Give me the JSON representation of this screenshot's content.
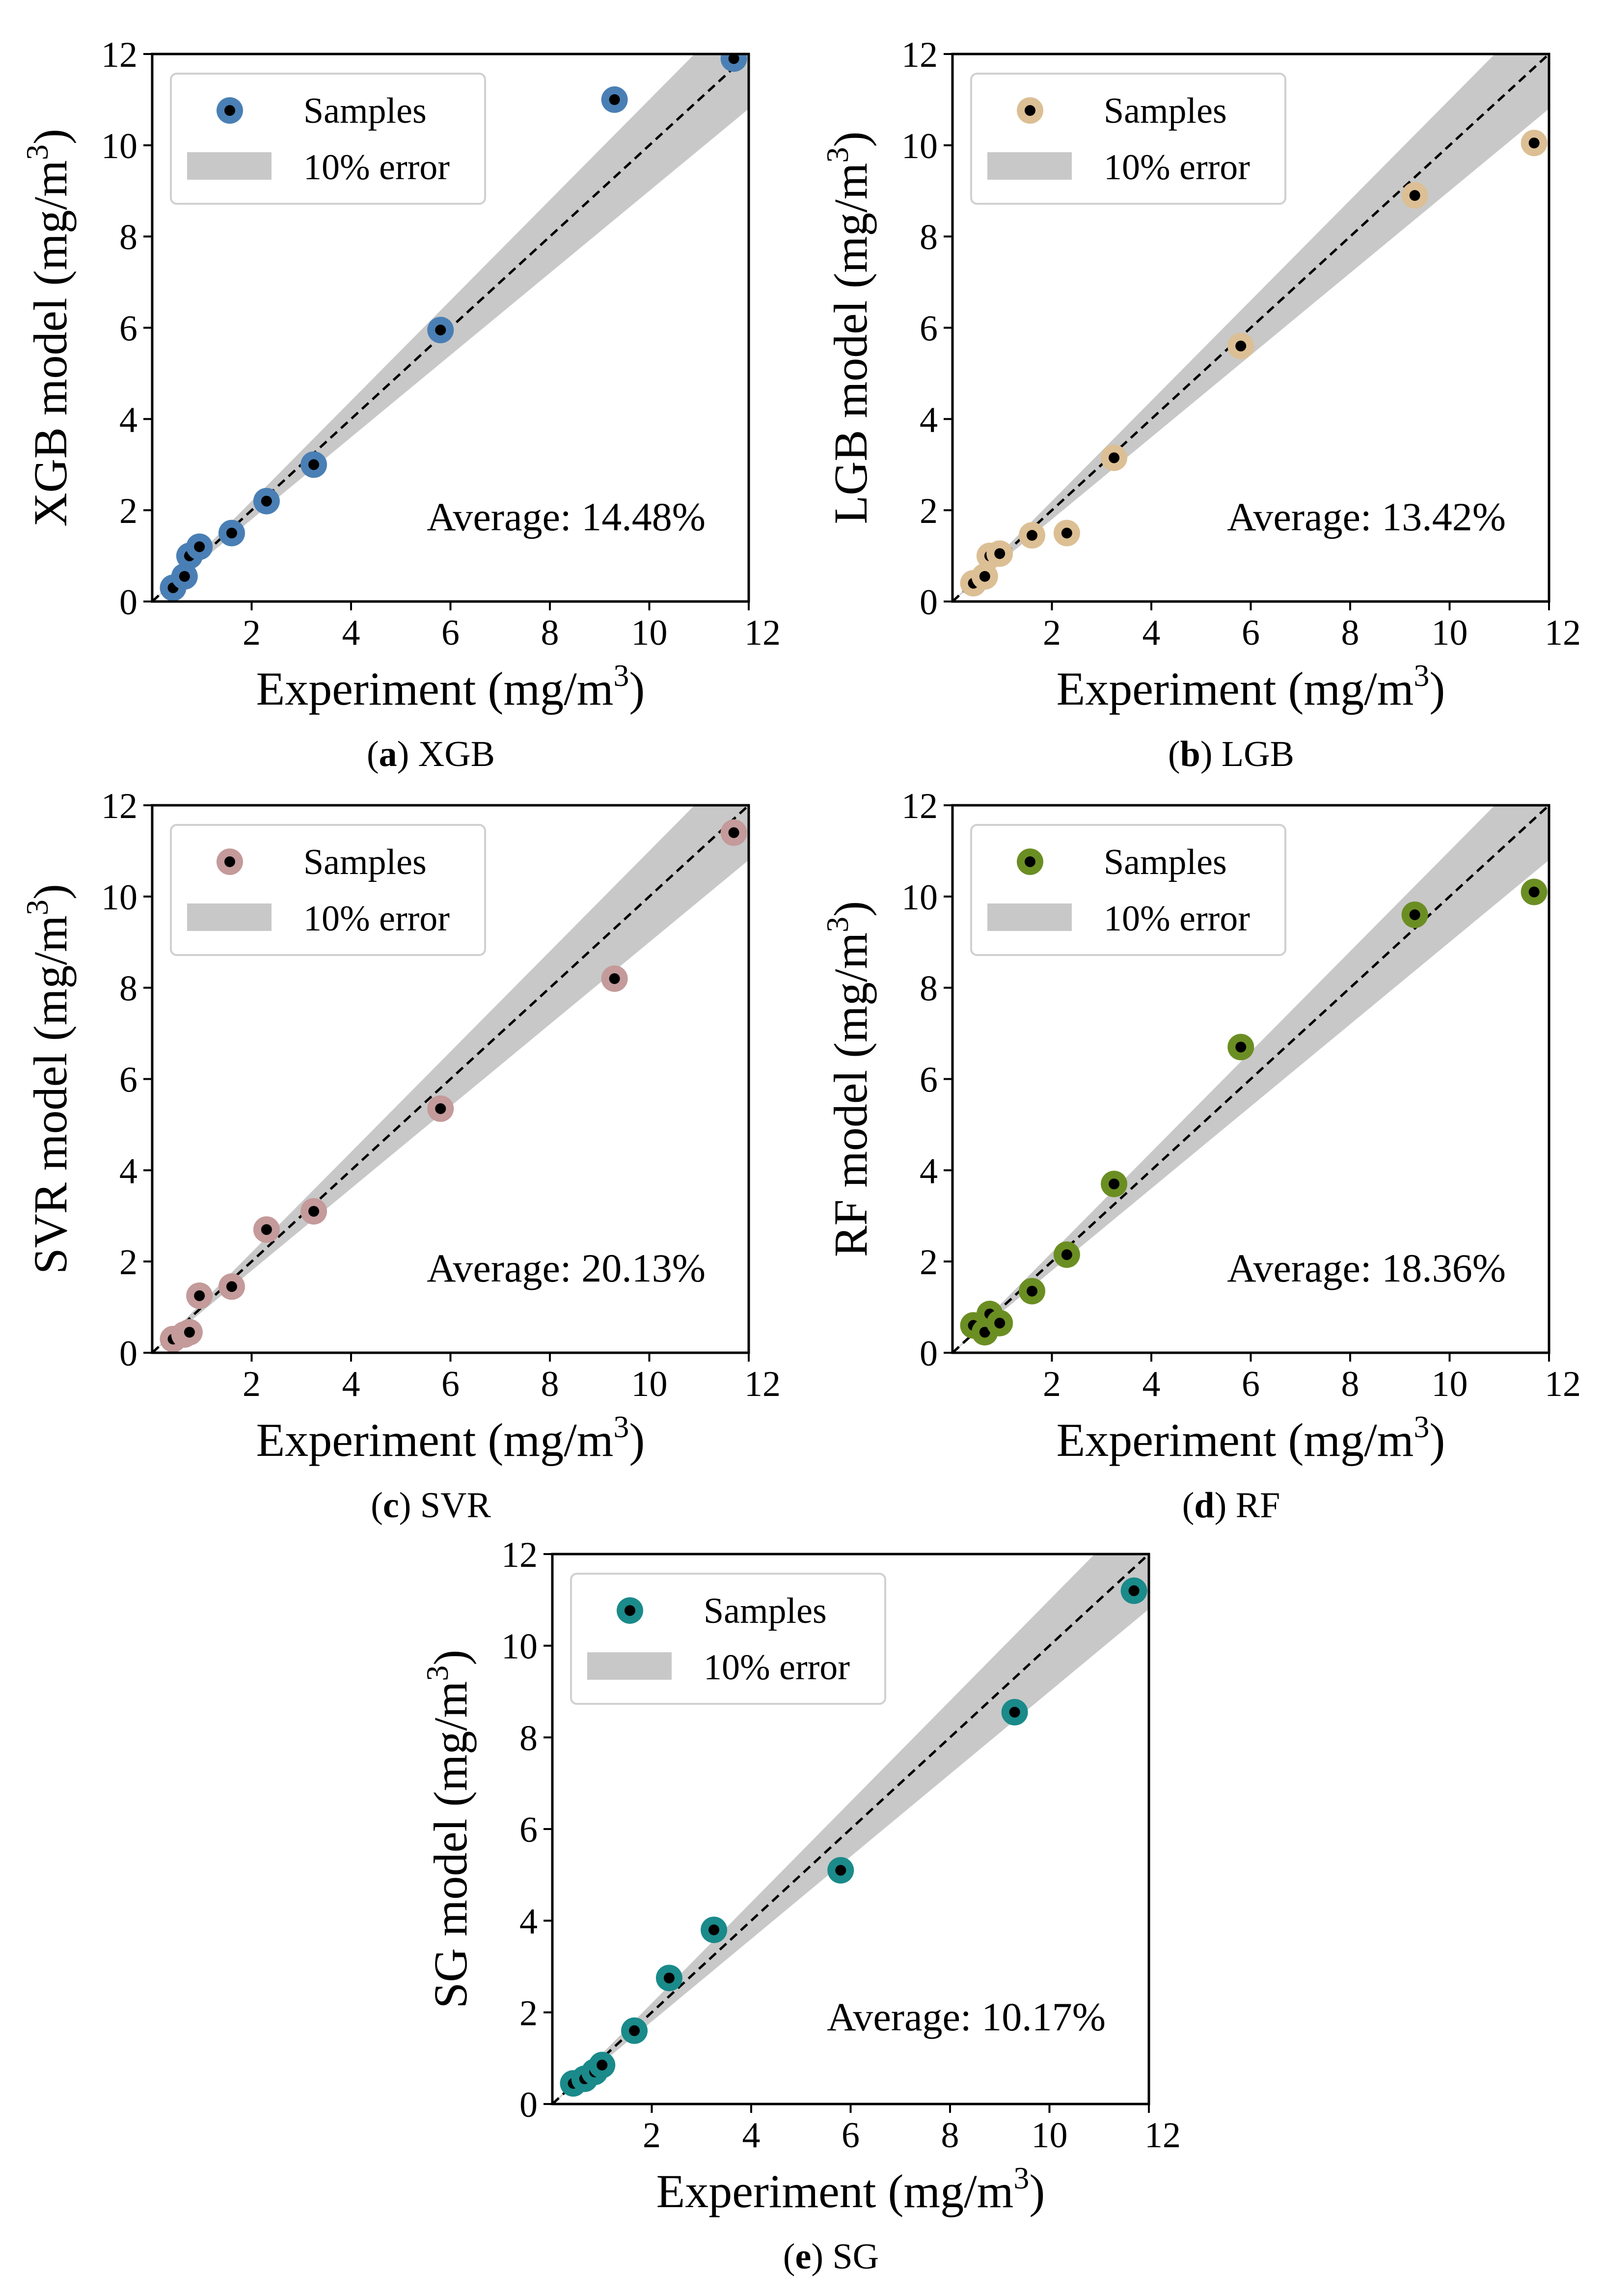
{
  "figure": {
    "legend": {
      "samples_label": "Samples",
      "band_label": "10% error"
    },
    "colors": {
      "band": "#c8c8c8",
      "reference_line": "#000000",
      "marker_center": "#000000"
    }
  },
  "chart_data": [
    {
      "type": "scatter",
      "id": "xgb",
      "caption_letter": "a",
      "caption_text": "XGB",
      "xlabel": "Experiment (mg/m",
      "ylabel": "XGB model (mg/m",
      "unit_superscript": "3",
      "xlabel_close": ")",
      "ylabel_close": ")",
      "xlim": [
        0,
        12
      ],
      "ylim": [
        0,
        12
      ],
      "xticks": [
        "2",
        "4",
        "6",
        "8",
        "10",
        "12"
      ],
      "yticks": [
        "0",
        "2",
        "4",
        "6",
        "8",
        "10",
        "12"
      ],
      "color": "#4a7fb5",
      "average_text": "Average: 14.48%",
      "band_error": 0.1,
      "x": [
        0.42,
        0.65,
        0.75,
        0.95,
        1.6,
        2.3,
        3.25,
        5.8,
        9.3,
        11.7
      ],
      "y": [
        0.3,
        0.55,
        1.0,
        1.2,
        1.5,
        2.2,
        3.0,
        5.95,
        11.0,
        11.9
      ]
    },
    {
      "type": "scatter",
      "id": "lgb",
      "caption_letter": "b",
      "caption_text": "LGB",
      "xlabel": "Experiment (mg/m",
      "ylabel": "LGB model (mg/m",
      "unit_superscript": "3",
      "xlabel_close": ")",
      "ylabel_close": ")",
      "xlim": [
        0,
        12
      ],
      "ylim": [
        0,
        12
      ],
      "xticks": [
        "2",
        "4",
        "6",
        "8",
        "10",
        "12"
      ],
      "yticks": [
        "0",
        "2",
        "4",
        "6",
        "8",
        "10",
        "12"
      ],
      "color": "#dcbf94",
      "average_text": "Average: 13.42%",
      "band_error": 0.1,
      "x": [
        0.42,
        0.65,
        0.75,
        0.95,
        1.6,
        2.3,
        3.25,
        5.8,
        9.3,
        11.7
      ],
      "y": [
        0.4,
        0.55,
        1.0,
        1.05,
        1.45,
        1.5,
        3.15,
        5.6,
        8.9,
        10.05
      ]
    },
    {
      "type": "scatter",
      "id": "svr",
      "caption_letter": "c",
      "caption_text": "SVR",
      "xlabel": "Experiment (mg/m",
      "ylabel": "SVR model (mg/m",
      "unit_superscript": "3",
      "xlabel_close": ")",
      "ylabel_close": ")",
      "xlim": [
        0,
        12
      ],
      "ylim": [
        0,
        12
      ],
      "xticks": [
        "2",
        "4",
        "6",
        "8",
        "10",
        "12"
      ],
      "yticks": [
        "0",
        "2",
        "4",
        "6",
        "8",
        "10",
        "12"
      ],
      "color": "#c49a9a",
      "average_text": "Average: 20.13%",
      "band_error": 0.1,
      "x": [
        0.42,
        0.65,
        0.75,
        0.95,
        1.6,
        2.3,
        3.25,
        5.8,
        9.3,
        11.7
      ],
      "y": [
        0.3,
        0.4,
        0.45,
        1.25,
        1.45,
        2.7,
        3.1,
        5.35,
        8.2,
        11.4
      ]
    },
    {
      "type": "scatter",
      "id": "rf",
      "caption_letter": "d",
      "caption_text": "RF",
      "xlabel": "Experiment (mg/m",
      "ylabel": "RF model (mg/m",
      "unit_superscript": "3",
      "xlabel_close": ")",
      "ylabel_close": ")",
      "xlim": [
        0,
        12
      ],
      "ylim": [
        0,
        12
      ],
      "xticks": [
        "2",
        "4",
        "6",
        "8",
        "10",
        "12"
      ],
      "yticks": [
        "0",
        "2",
        "4",
        "6",
        "8",
        "10",
        "12"
      ],
      "color": "#6b8e23",
      "average_text": "Average: 18.36%",
      "band_error": 0.1,
      "x": [
        0.42,
        0.65,
        0.75,
        0.95,
        1.6,
        2.3,
        3.25,
        5.8,
        9.3,
        11.7
      ],
      "y": [
        0.6,
        0.45,
        0.85,
        0.65,
        1.35,
        2.15,
        3.7,
        6.7,
        9.6,
        10.1
      ]
    },
    {
      "type": "scatter",
      "id": "sg",
      "caption_letter": "e",
      "caption_text": "SG",
      "xlabel": "Experiment (mg/m",
      "ylabel": "SG model (mg/m",
      "unit_superscript": "3",
      "xlabel_close": ")",
      "ylabel_close": ")",
      "xlim": [
        0,
        12
      ],
      "ylim": [
        0,
        12
      ],
      "xticks": [
        "2",
        "4",
        "6",
        "8",
        "10",
        "12"
      ],
      "yticks": [
        "0",
        "2",
        "4",
        "6",
        "8",
        "10",
        "12"
      ],
      "color": "#1a8a8a",
      "average_text": "Average: 10.17%",
      "band_error": 0.1,
      "x": [
        0.42,
        0.65,
        0.85,
        1.0,
        1.65,
        2.35,
        3.25,
        5.8,
        9.3,
        11.7
      ],
      "y": [
        0.45,
        0.55,
        0.7,
        0.85,
        1.6,
        2.75,
        3.8,
        5.1,
        8.55,
        11.2
      ]
    }
  ]
}
